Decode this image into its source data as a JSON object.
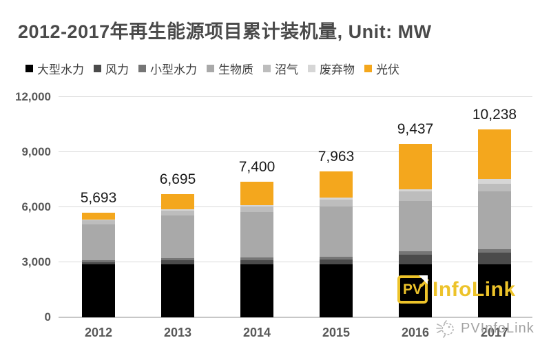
{
  "chart_data": {
    "type": "bar",
    "variant": "stacked",
    "title": "2012-2017年再生能源项目累计装机量, Unit: MW",
    "unit": "MW",
    "categories": [
      "2012",
      "2013",
      "2014",
      "2015",
      "2016",
      "2017"
    ],
    "series": [
      {
        "name": "大型水力",
        "color": "#000000",
        "values": [
          2906,
          2906,
          2906,
          2906,
          2906,
          2906
        ]
      },
      {
        "name": "风力",
        "color": "#4b4b4b",
        "values": [
          112,
          223,
          225,
          234,
          507,
          628
        ]
      },
      {
        "name": "小型水力",
        "color": "#757575",
        "values": [
          102,
          108,
          142,
          172,
          182,
          187
        ]
      },
      {
        "name": "生物质",
        "color": "#a9a9a9",
        "values": [
          1960,
          2321,
          2451,
          2726,
          2752,
          3157
        ]
      },
      {
        "name": "沼气",
        "color": "#bdbdbd",
        "values": [
          193,
          265,
          312,
          372,
          502,
          400
        ]
      },
      {
        "name": "废弃物",
        "color": "#d6d6d6",
        "values": [
          43,
          48,
          66,
          133,
          145,
          263
        ]
      },
      {
        "name": "光伏",
        "color": "#f4a71d",
        "values": [
          377,
          824,
          1298,
          1420,
          2443,
          2697
        ]
      }
    ],
    "totals": [
      "5,693",
      "6,695",
      "7,400",
      "7,963",
      "9,437",
      "10,238"
    ],
    "y_axis": {
      "min": 0,
      "max": 12000,
      "ticks": [
        {
          "v": 0,
          "label": "0"
        },
        {
          "v": 3000,
          "label": "3,000"
        },
        {
          "v": 6000,
          "label": "6,000"
        },
        {
          "v": 9000,
          "label": "9,000"
        },
        {
          "v": 12000,
          "label": "12,000"
        }
      ]
    },
    "grid": true,
    "legend_position": "top-left"
  },
  "logo": {
    "box_text": "PV",
    "name": "InfoLink",
    "brand_color": "#edc32a"
  },
  "watermark": {
    "text": "PVInfoLink"
  },
  "colors": {
    "title_text": "#4a4a4a",
    "axis_text": "#595959",
    "data_label_text": "#1a1a1a",
    "gridline": "#d9d9d9",
    "background": "#ffffff"
  }
}
